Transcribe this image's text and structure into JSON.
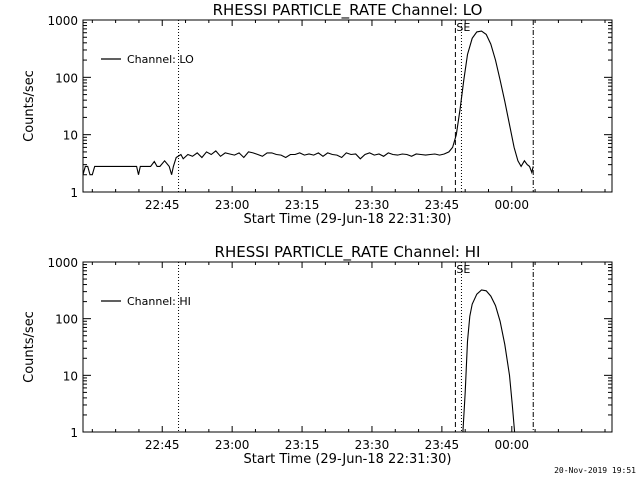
{
  "footer": {
    "timestamp": "20-Nov-2019 19:51"
  },
  "chart_data": [
    {
      "type": "line",
      "title": "RHESSI PARTICLE_RATE Channel: LO",
      "xlabel": "Start Time (29-Jun-18 22:31:30)",
      "ylabel": "Counts/sec",
      "yscale": "log",
      "ylim": [
        1,
        1000
      ],
      "xlim_minutes": [
        -3.5,
        110
      ],
      "x_ticks": [
        {
          "min": 13.5,
          "label": "22:45"
        },
        {
          "min": 28.5,
          "label": "23:00"
        },
        {
          "min": 43.5,
          "label": "23:15"
        },
        {
          "min": 58.5,
          "label": "23:30"
        },
        {
          "min": 73.5,
          "label": "23:45"
        },
        {
          "min": 88.5,
          "label": "00:00"
        }
      ],
      "y_ticks": [
        {
          "v": 1,
          "label": "1"
        },
        {
          "v": 10,
          "label": "10"
        },
        {
          "v": 100,
          "label": "100"
        },
        {
          "v": 1000,
          "label": "1000"
        }
      ],
      "legend": {
        "label": "Channel: LO",
        "placement": "top-left"
      },
      "annotation": "SE",
      "vlines": [
        {
          "min": 17.0,
          "style": "dotted"
        },
        {
          "min": 76.4,
          "style": "dashed"
        },
        {
          "min": 77.7,
          "style": "dotted"
        },
        {
          "min": 93.1,
          "style": "dashdot"
        }
      ],
      "series": [
        {
          "x": [
            -3.5,
            -3.0,
            -2.5,
            -2.0,
            -1.5,
            -1.0,
            0.0,
            2.0,
            5.0,
            8.0,
            8.4,
            8.8,
            11.0,
            11.8,
            12.4,
            13.0,
            14.0,
            15.0,
            15.5,
            15.9,
            16.5,
            17.5,
            18.0,
            19.0,
            20.0,
            21.0,
            22.0,
            23.0,
            24.0,
            25.0,
            26.0,
            27.0,
            28.0,
            29.0,
            30.0,
            31.0,
            32.0,
            33.0,
            34.0,
            35.0,
            36.0,
            37.0,
            38.0,
            39.0,
            40.0,
            41.0,
            42.0,
            43.0,
            44.0,
            45.0,
            46.0,
            47.0,
            48.0,
            49.0,
            50.0,
            51.0,
            52.0,
            53.0,
            54.0,
            55.0,
            56.0,
            57.0,
            58.0,
            59.0,
            60.0,
            61.0,
            62.0,
            63.0,
            64.0,
            65.0,
            66.0,
            67.0,
            68.0,
            69.0,
            70.0,
            71.0,
            72.0,
            73.0,
            74.0,
            75.0,
            75.8,
            76.6,
            77.4,
            78.2,
            79.0,
            80.0,
            81.0,
            82.0,
            83.0,
            84.0,
            85.0,
            86.0,
            87.0,
            88.0,
            89.0,
            89.8,
            90.5,
            91.2,
            91.8,
            92.3,
            92.8,
            93.1
          ],
          "y": [
            2.0,
            2.8,
            2.8,
            2.0,
            2.0,
            2.8,
            2.8,
            2.8,
            2.8,
            2.8,
            2.0,
            2.8,
            2.8,
            3.4,
            2.8,
            2.8,
            3.5,
            2.8,
            2.0,
            2.8,
            4.0,
            4.5,
            3.8,
            4.5,
            4.2,
            4.8,
            4.0,
            5.0,
            4.5,
            5.2,
            4.2,
            4.8,
            4.6,
            4.4,
            4.8,
            4.0,
            5.0,
            4.8,
            4.5,
            4.2,
            4.8,
            4.8,
            4.5,
            4.4,
            4.0,
            4.5,
            4.5,
            4.8,
            4.4,
            4.6,
            4.4,
            4.8,
            4.2,
            4.8,
            4.5,
            4.4,
            4.0,
            4.8,
            4.5,
            4.6,
            3.8,
            4.5,
            4.8,
            4.4,
            4.6,
            4.2,
            4.8,
            4.5,
            4.4,
            4.6,
            4.5,
            4.2,
            4.6,
            4.5,
            4.4,
            4.5,
            4.6,
            4.4,
            4.6,
            5.0,
            6.0,
            10.0,
            28.0,
            90.0,
            250.0,
            480.0,
            620.0,
            640.0,
            560.0,
            380.0,
            200.0,
            90.0,
            38.0,
            15.0,
            6.0,
            3.5,
            2.8,
            3.5,
            3.0,
            2.8,
            2.2,
            2.8
          ]
        }
      ]
    },
    {
      "type": "line",
      "title": "RHESSI PARTICLE_RATE Channel: HI",
      "xlabel": "Start Time (29-Jun-18 22:31:30)",
      "ylabel": "Counts/sec",
      "yscale": "log",
      "ylim": [
        1,
        1000
      ],
      "xlim_minutes": [
        -3.5,
        110
      ],
      "x_ticks": [
        {
          "min": 13.5,
          "label": "22:45"
        },
        {
          "min": 28.5,
          "label": "23:00"
        },
        {
          "min": 43.5,
          "label": "23:15"
        },
        {
          "min": 58.5,
          "label": "23:30"
        },
        {
          "min": 73.5,
          "label": "23:45"
        },
        {
          "min": 88.5,
          "label": "00:00"
        }
      ],
      "y_ticks": [
        {
          "v": 1,
          "label": "1"
        },
        {
          "v": 10,
          "label": "10"
        },
        {
          "v": 100,
          "label": "100"
        },
        {
          "v": 1000,
          "label": "1000"
        }
      ],
      "legend": {
        "label": "Channel: HI",
        "placement": "top-left"
      },
      "annotation": "SE",
      "vlines": [
        {
          "min": 17.0,
          "style": "dotted"
        },
        {
          "min": 76.4,
          "style": "dashed"
        },
        {
          "min": 77.7,
          "style": "dotted"
        },
        {
          "min": 93.1,
          "style": "dashdot"
        }
      ],
      "series": [
        {
          "x": [
            78.0,
            78.5,
            79.0,
            79.5,
            80.0,
            81.0,
            82.0,
            83.0,
            84.0,
            85.0,
            86.0,
            87.0,
            88.0,
            88.6,
            89.1
          ],
          "y": [
            1.0,
            5.0,
            40.0,
            110.0,
            180.0,
            270.0,
            320.0,
            310.0,
            250.0,
            170.0,
            90.0,
            35.0,
            10.0,
            3.0,
            1.0
          ]
        }
      ]
    }
  ]
}
